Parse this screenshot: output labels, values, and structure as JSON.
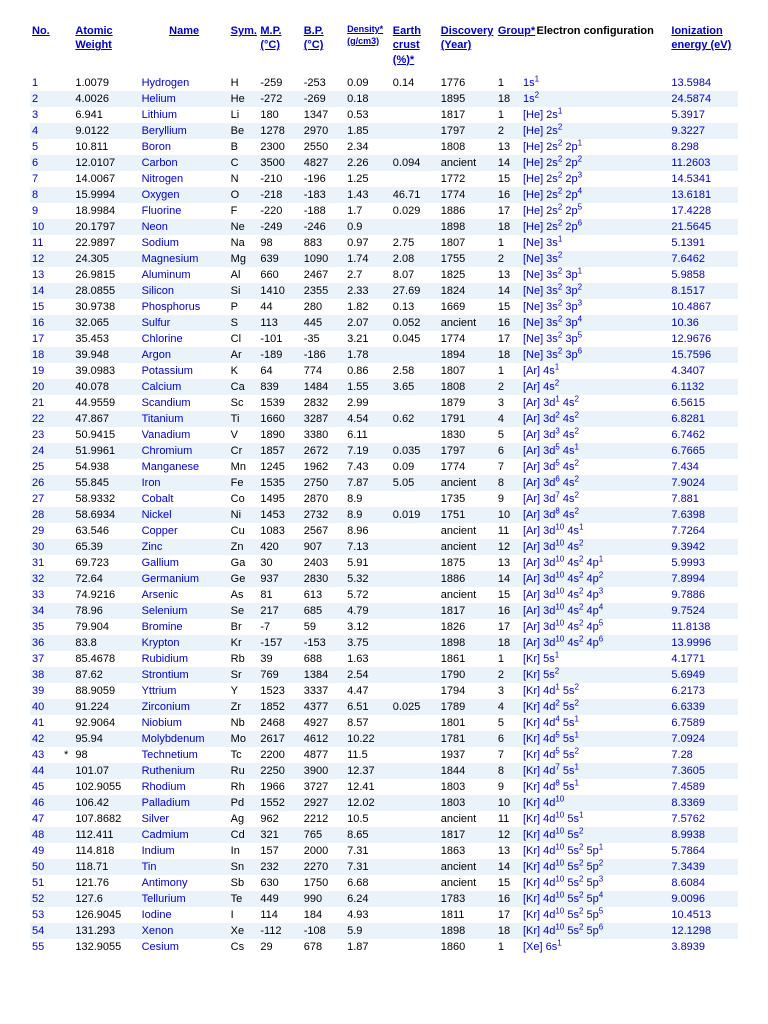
{
  "headers": {
    "no": "No.",
    "aw": "Atomic Weight",
    "name": "Name",
    "sym": "Sym.",
    "mp": "M.P. (°C)",
    "bp": "B.P. (°C)",
    "density": "Density* (g/cm3)",
    "crust": "Earth crust (%)*",
    "disc": "Discovery (Year)",
    "group": "Group*",
    "econf": "Electron configuration",
    "ion": "Ionization energy (eV)"
  },
  "rows": [
    {
      "no": "1",
      "aw": "1.0079",
      "name": "Hydrogen",
      "sym": "H",
      "mp": "-259",
      "bp": "-253",
      "d": "0.09",
      "c": "0.14",
      "y": "1776",
      "g": "1",
      "e": "1s<sup>1</sup>",
      "i": "13.5984"
    },
    {
      "no": "2",
      "aw": "4.0026",
      "name": "Helium",
      "sym": "He",
      "mp": "-272",
      "bp": "-269",
      "d": "0.18",
      "c": "",
      "y": "1895",
      "g": "18",
      "e": "1s<sup>2</sup>",
      "i": "24.5874"
    },
    {
      "no": "3",
      "aw": "6.941",
      "name": "Lithium",
      "sym": "Li",
      "mp": "180",
      "bp": "1347",
      "d": "0.53",
      "c": "",
      "y": "1817",
      "g": "1",
      "e": "[He] 2s<sup>1</sup>",
      "i": "5.3917"
    },
    {
      "no": "4",
      "aw": "9.0122",
      "name": "Beryllium",
      "sym": "Be",
      "mp": "1278",
      "bp": "2970",
      "d": "1.85",
      "c": "",
      "y": "1797",
      "g": "2",
      "e": "[He] 2s<sup>2</sup>",
      "i": "9.3227"
    },
    {
      "no": "5",
      "aw": "10.811",
      "name": "Boron",
      "sym": "B",
      "mp": "2300",
      "bp": "2550",
      "d": "2.34",
      "c": "",
      "y": "1808",
      "g": "13",
      "e": "[He] 2s<sup>2</sup> 2p<sup>1</sup>",
      "i": "8.298"
    },
    {
      "no": "6",
      "aw": "12.0107",
      "name": "Carbon",
      "sym": "C",
      "mp": "3500",
      "bp": "4827",
      "d": "2.26",
      "c": "0.094",
      "y": "ancient",
      "g": "14",
      "e": "[He] 2s<sup>2</sup> 2p<sup>2</sup>",
      "i": "11.2603"
    },
    {
      "no": "7",
      "aw": "14.0067",
      "name": "Nitrogen",
      "sym": "N",
      "mp": "-210",
      "bp": "-196",
      "d": "1.25",
      "c": "",
      "y": "1772",
      "g": "15",
      "e": "[He] 2s<sup>2</sup> 2p<sup>3</sup>",
      "i": "14.5341"
    },
    {
      "no": "8",
      "aw": "15.9994",
      "name": "Oxygen",
      "sym": "O",
      "mp": "-218",
      "bp": "-183",
      "d": "1.43",
      "c": "46.71",
      "y": "1774",
      "g": "16",
      "e": "[He] 2s<sup>2</sup> 2p<sup>4</sup>",
      "i": "13.6181"
    },
    {
      "no": "9",
      "aw": "18.9984",
      "name": "Fluorine",
      "sym": "F",
      "mp": "-220",
      "bp": "-188",
      "d": "1.7",
      "c": "0.029",
      "y": "1886",
      "g": "17",
      "e": "[He] 2s<sup>2</sup> 2p<sup>5</sup>",
      "i": "17.4228"
    },
    {
      "no": "10",
      "aw": "20.1797",
      "name": "Neon",
      "sym": "Ne",
      "mp": "-249",
      "bp": "-246",
      "d": "0.9",
      "c": "",
      "y": "1898",
      "g": "18",
      "e": "[He] 2s<sup>2</sup> 2p<sup>6</sup>",
      "i": "21.5645"
    },
    {
      "no": "11",
      "aw": "22.9897",
      "name": "Sodium",
      "sym": "Na",
      "mp": "98",
      "bp": "883",
      "d": "0.97",
      "c": "2.75",
      "y": "1807",
      "g": "1",
      "e": "[Ne] 3s<sup>1</sup>",
      "i": "5.1391"
    },
    {
      "no": "12",
      "aw": "24.305",
      "name": "Magnesium",
      "sym": "Mg",
      "mp": "639",
      "bp": "1090",
      "d": "1.74",
      "c": "2.08",
      "y": "1755",
      "g": "2",
      "e": "[Ne] 3s<sup>2</sup>",
      "i": "7.6462"
    },
    {
      "no": "13",
      "aw": "26.9815",
      "name": "Aluminum",
      "sym": "Al",
      "mp": "660",
      "bp": "2467",
      "d": "2.7",
      "c": "8.07",
      "y": "1825",
      "g": "13",
      "e": "[Ne] 3s<sup>2</sup> 3p<sup>1</sup>",
      "i": "5.9858"
    },
    {
      "no": "14",
      "aw": "28.0855",
      "name": "Silicon",
      "sym": "Si",
      "mp": "1410",
      "bp": "2355",
      "d": "2.33",
      "c": "27.69",
      "y": "1824",
      "g": "14",
      "e": "[Ne] 3s<sup>2</sup> 3p<sup>2</sup>",
      "i": "8.1517"
    },
    {
      "no": "15",
      "aw": "30.9738",
      "name": "Phosphorus",
      "sym": "P",
      "mp": "44",
      "bp": "280",
      "d": "1.82",
      "c": "0.13",
      "y": "1669",
      "g": "15",
      "e": "[Ne] 3s<sup>2</sup> 3p<sup>3</sup>",
      "i": "10.4867"
    },
    {
      "no": "16",
      "aw": "32.065",
      "name": "Sulfur",
      "sym": "S",
      "mp": "113",
      "bp": "445",
      "d": "2.07",
      "c": "0.052",
      "y": "ancient",
      "g": "16",
      "e": "[Ne] 3s<sup>2</sup> 3p<sup>4</sup>",
      "i": "10.36"
    },
    {
      "no": "17",
      "aw": "35.453",
      "name": "Chlorine",
      "sym": "Cl",
      "mp": "-101",
      "bp": "-35",
      "d": "3.21",
      "c": "0.045",
      "y": "1774",
      "g": "17",
      "e": "[Ne] 3s<sup>2</sup> 3p<sup>5</sup>",
      "i": "12.9676"
    },
    {
      "no": "18",
      "aw": "39.948",
      "name": "Argon",
      "sym": "Ar",
      "mp": "-189",
      "bp": "-186",
      "d": "1.78",
      "c": "",
      "y": "1894",
      "g": "18",
      "e": "[Ne] 3s<sup>2</sup> 3p<sup>6</sup>",
      "i": "15.7596"
    },
    {
      "no": "19",
      "aw": "39.0983",
      "name": "Potassium",
      "sym": "K",
      "mp": "64",
      "bp": "774",
      "d": "0.86",
      "c": "2.58",
      "y": "1807",
      "g": "1",
      "e": "[Ar] 4s<sup>1</sup>",
      "i": "4.3407"
    },
    {
      "no": "20",
      "aw": "40.078",
      "name": "Calcium",
      "sym": "Ca",
      "mp": "839",
      "bp": "1484",
      "d": "1.55",
      "c": "3.65",
      "y": "1808",
      "g": "2",
      "e": "[Ar] 4s<sup>2</sup>",
      "i": "6.1132"
    },
    {
      "no": "21",
      "aw": "44.9559",
      "name": "Scandium",
      "sym": "Sc",
      "mp": "1539",
      "bp": "2832",
      "d": "2.99",
      "c": "",
      "y": "1879",
      "g": "3",
      "e": "[Ar] 3d<sup>1</sup> 4s<sup>2</sup>",
      "i": "6.5615"
    },
    {
      "no": "22",
      "aw": "47.867",
      "name": "Titanium",
      "sym": "Ti",
      "mp": "1660",
      "bp": "3287",
      "d": "4.54",
      "c": "0.62",
      "y": "1791",
      "g": "4",
      "e": "[Ar] 3d<sup>2</sup> 4s<sup>2</sup>",
      "i": "6.8281"
    },
    {
      "no": "23",
      "aw": "50.9415",
      "name": "Vanadium",
      "sym": "V",
      "mp": "1890",
      "bp": "3380",
      "d": "6.11",
      "c": "",
      "y": "1830",
      "g": "5",
      "e": "[Ar] 3d<sup>3</sup> 4s<sup>2</sup>",
      "i": "6.7462"
    },
    {
      "no": "24",
      "aw": "51.9961",
      "name": "Chromium",
      "sym": "Cr",
      "mp": "1857",
      "bp": "2672",
      "d": "7.19",
      "c": "0.035",
      "y": "1797",
      "g": "6",
      "e": "[Ar] 3d<sup>5</sup> 4s<sup>1</sup>",
      "i": "6.7665"
    },
    {
      "no": "25",
      "aw": "54.938",
      "name": "Manganese",
      "sym": "Mn",
      "mp": "1245",
      "bp": "1962",
      "d": "7.43",
      "c": "0.09",
      "y": "1774",
      "g": "7",
      "e": "[Ar] 3d<sup>5</sup> 4s<sup>2</sup>",
      "i": "7.434"
    },
    {
      "no": "26",
      "aw": "55.845",
      "name": "Iron",
      "sym": "Fe",
      "mp": "1535",
      "bp": "2750",
      "d": "7.87",
      "c": "5.05",
      "y": "ancient",
      "g": "8",
      "e": "[Ar] 3d<sup>6</sup> 4s<sup>2</sup>",
      "i": "7.9024"
    },
    {
      "no": "27",
      "aw": "58.9332",
      "name": "Cobalt",
      "sym": "Co",
      "mp": "1495",
      "bp": "2870",
      "d": "8.9",
      "c": "",
      "y": "1735",
      "g": "9",
      "e": "[Ar] 3d<sup>7</sup> 4s<sup>2</sup>",
      "i": "7.881"
    },
    {
      "no": "28",
      "aw": "58.6934",
      "name": "Nickel",
      "sym": "Ni",
      "mp": "1453",
      "bp": "2732",
      "d": "8.9",
      "c": "0.019",
      "y": "1751",
      "g": "10",
      "e": "[Ar] 3d<sup>8</sup> 4s<sup>2</sup>",
      "i": "7.6398"
    },
    {
      "no": "29",
      "aw": "63.546",
      "name": "Copper",
      "sym": "Cu",
      "mp": "1083",
      "bp": "2567",
      "d": "8.96",
      "c": "",
      "y": "ancient",
      "g": "11",
      "e": "[Ar] 3d<sup>10</sup> 4s<sup>1</sup>",
      "i": "7.7264"
    },
    {
      "no": "30",
      "aw": "65.39",
      "name": "Zinc",
      "sym": "Zn",
      "mp": "420",
      "bp": "907",
      "d": "7.13",
      "c": "",
      "y": "ancient",
      "g": "12",
      "e": "[Ar] 3d<sup>10</sup> 4s<sup>2</sup>",
      "i": "9.3942"
    },
    {
      "no": "31",
      "aw": "69.723",
      "name": "Gallium",
      "sym": "Ga",
      "mp": "30",
      "bp": "2403",
      "d": "5.91",
      "c": "",
      "y": "1875",
      "g": "13",
      "e": "[Ar] 3d<sup>10</sup> 4s<sup>2</sup> 4p<sup>1</sup>",
      "i": "5.9993"
    },
    {
      "no": "32",
      "aw": "72.64",
      "name": "Germanium",
      "sym": "Ge",
      "mp": "937",
      "bp": "2830",
      "d": "5.32",
      "c": "",
      "y": "1886",
      "g": "14",
      "e": "[Ar] 3d<sup>10</sup> 4s<sup>2</sup> 4p<sup>2</sup>",
      "i": "7.8994"
    },
    {
      "no": "33",
      "aw": "74.9216",
      "name": "Arsenic",
      "sym": "As",
      "mp": "81",
      "bp": "613",
      "d": "5.72",
      "c": "",
      "y": "ancient",
      "g": "15",
      "e": "[Ar] 3d<sup>10</sup> 4s<sup>2</sup> 4p<sup>3</sup>",
      "i": "9.7886"
    },
    {
      "no": "34",
      "aw": "78.96",
      "name": "Selenium",
      "sym": "Se",
      "mp": "217",
      "bp": "685",
      "d": "4.79",
      "c": "",
      "y": "1817",
      "g": "16",
      "e": "[Ar] 3d<sup>10</sup> 4s<sup>2</sup> 4p<sup>4</sup>",
      "i": "9.7524"
    },
    {
      "no": "35",
      "aw": "79.904",
      "name": "Bromine",
      "sym": "Br",
      "mp": "-7",
      "bp": "59",
      "d": "3.12",
      "c": "",
      "y": "1826",
      "g": "17",
      "e": "[Ar] 3d<sup>10</sup> 4s<sup>2</sup> 4p<sup>5</sup>",
      "i": "11.8138"
    },
    {
      "no": "36",
      "aw": "83.8",
      "name": "Krypton",
      "sym": "Kr",
      "mp": "-157",
      "bp": "-153",
      "d": "3.75",
      "c": "",
      "y": "1898",
      "g": "18",
      "e": "[Ar] 3d<sup>10</sup> 4s<sup>2</sup> 4p<sup>6</sup>",
      "i": "13.9996"
    },
    {
      "no": "37",
      "aw": "85.4678",
      "name": "Rubidium",
      "sym": "Rb",
      "mp": "39",
      "bp": "688",
      "d": "1.63",
      "c": "",
      "y": "1861",
      "g": "1",
      "e": "[Kr] 5s<sup>1</sup>",
      "i": "4.1771"
    },
    {
      "no": "38",
      "aw": "87.62",
      "name": "Strontium",
      "sym": "Sr",
      "mp": "769",
      "bp": "1384",
      "d": "2.54",
      "c": "",
      "y": "1790",
      "g": "2",
      "e": "[Kr] 5s<sup>2</sup>",
      "i": "5.6949"
    },
    {
      "no": "39",
      "aw": "88.9059",
      "name": "Yttrium",
      "sym": "Y",
      "mp": "1523",
      "bp": "3337",
      "d": "4.47",
      "c": "",
      "y": "1794",
      "g": "3",
      "e": "[Kr] 4d<sup>1</sup> 5s<sup>2</sup>",
      "i": "6.2173"
    },
    {
      "no": "40",
      "aw": "91.224",
      "name": "Zirconium",
      "sym": "Zr",
      "mp": "1852",
      "bp": "4377",
      "d": "6.51",
      "c": "0.025",
      "y": "1789",
      "g": "4",
      "e": "[Kr] 4d<sup>2</sup> 5s<sup>2</sup>",
      "i": "6.6339"
    },
    {
      "no": "41",
      "aw": "92.9064",
      "name": "Niobium",
      "sym": "Nb",
      "mp": "2468",
      "bp": "4927",
      "d": "8.57",
      "c": "",
      "y": "1801",
      "g": "5",
      "e": "[Kr] 4d<sup>4</sup> 5s<sup>1</sup>",
      "i": "6.7589"
    },
    {
      "no": "42",
      "aw": "95.94",
      "name": "Molybdenum",
      "sym": "Mo",
      "mp": "2617",
      "bp": "4612",
      "d": "10.22",
      "c": "",
      "y": "1781",
      "g": "6",
      "e": "[Kr] 4d<sup>5</sup> 5s<sup>1</sup>",
      "i": "7.0924"
    },
    {
      "no": "43",
      "star": "*",
      "aw": "98",
      "name": "Technetium",
      "sym": "Tc",
      "mp": "2200",
      "bp": "4877",
      "d": "11.5",
      "c": "",
      "y": "1937",
      "g": "7",
      "e": "[Kr] 4d<sup>5</sup> 5s<sup>2</sup>",
      "i": "7.28"
    },
    {
      "no": "44",
      "aw": "101.07",
      "name": "Ruthenium",
      "sym": "Ru",
      "mp": "2250",
      "bp": "3900",
      "d": "12.37",
      "c": "",
      "y": "1844",
      "g": "8",
      "e": "[Kr] 4d<sup>7</sup> 5s<sup>1</sup>",
      "i": "7.3605"
    },
    {
      "no": "45",
      "aw": "102.9055",
      "name": "Rhodium",
      "sym": "Rh",
      "mp": "1966",
      "bp": "3727",
      "d": "12.41",
      "c": "",
      "y": "1803",
      "g": "9",
      "e": "[Kr] 4d<sup>8</sup> 5s<sup>1</sup>",
      "i": "7.4589"
    },
    {
      "no": "46",
      "aw": "106.42",
      "name": "Palladium",
      "sym": "Pd",
      "mp": "1552",
      "bp": "2927",
      "d": "12.02",
      "c": "",
      "y": "1803",
      "g": "10",
      "e": "[Kr] 4d<sup>10</sup>",
      "i": "8.3369"
    },
    {
      "no": "47",
      "aw": "107.8682",
      "name": "Silver",
      "sym": "Ag",
      "mp": "962",
      "bp": "2212",
      "d": "10.5",
      "c": "",
      "y": "ancient",
      "g": "11",
      "e": "[Kr] 4d<sup>10</sup> 5s<sup>1</sup>",
      "i": "7.5762"
    },
    {
      "no": "48",
      "aw": "112.411",
      "name": "Cadmium",
      "sym": "Cd",
      "mp": "321",
      "bp": "765",
      "d": "8.65",
      "c": "",
      "y": "1817",
      "g": "12",
      "e": "[Kr] 4d<sup>10</sup> 5s<sup>2</sup>",
      "i": "8.9938"
    },
    {
      "no": "49",
      "aw": "114.818",
      "name": "Indium",
      "sym": "In",
      "mp": "157",
      "bp": "2000",
      "d": "7.31",
      "c": "",
      "y": "1863",
      "g": "13",
      "e": "[Kr] 4d<sup>10</sup> 5s<sup>2</sup> 5p<sup>1</sup>",
      "i": "5.7864"
    },
    {
      "no": "50",
      "aw": "118.71",
      "name": "Tin",
      "sym": "Sn",
      "mp": "232",
      "bp": "2270",
      "d": "7.31",
      "c": "",
      "y": "ancient",
      "g": "14",
      "e": "[Kr] 4d<sup>10</sup> 5s<sup>2</sup> 5p<sup>2</sup>",
      "i": "7.3439"
    },
    {
      "no": "51",
      "aw": "121.76",
      "name": "Antimony",
      "sym": "Sb",
      "mp": "630",
      "bp": "1750",
      "d": "6.68",
      "c": "",
      "y": "ancient",
      "g": "15",
      "e": "[Kr] 4d<sup>10</sup> 5s<sup>2</sup> 5p<sup>3</sup>",
      "i": "8.6084"
    },
    {
      "no": "52",
      "aw": "127.6",
      "name": "Tellurium",
      "sym": "Te",
      "mp": "449",
      "bp": "990",
      "d": "6.24",
      "c": "",
      "y": "1783",
      "g": "16",
      "e": "[Kr] 4d<sup>10</sup> 5s<sup>2</sup> 5p<sup>4</sup>",
      "i": "9.0096"
    },
    {
      "no": "53",
      "aw": "126.9045",
      "name": "Iodine",
      "sym": "I",
      "mp": "114",
      "bp": "184",
      "d": "4.93",
      "c": "",
      "y": "1811",
      "g": "17",
      "e": "[Kr] 4d<sup>10</sup> 5s<sup>2</sup> 5p<sup>5</sup>",
      "i": "10.4513"
    },
    {
      "no": "54",
      "aw": "131.293",
      "name": "Xenon",
      "sym": "Xe",
      "mp": "-112",
      "bp": "-108",
      "d": "5.9",
      "c": "",
      "y": "1898",
      "g": "18",
      "e": "[Kr] 4d<sup>10</sup> 5s<sup>2</sup> 5p<sup>6</sup>",
      "i": "12.1298"
    },
    {
      "no": "55",
      "aw": "132.9055",
      "name": "Cesium",
      "sym": "Cs",
      "mp": "29",
      "bp": "678",
      "d": "1.87",
      "c": "",
      "y": "1860",
      "g": "1",
      "e": "[Xe] 6s<sup>1</sup>",
      "i": "3.8939"
    }
  ]
}
